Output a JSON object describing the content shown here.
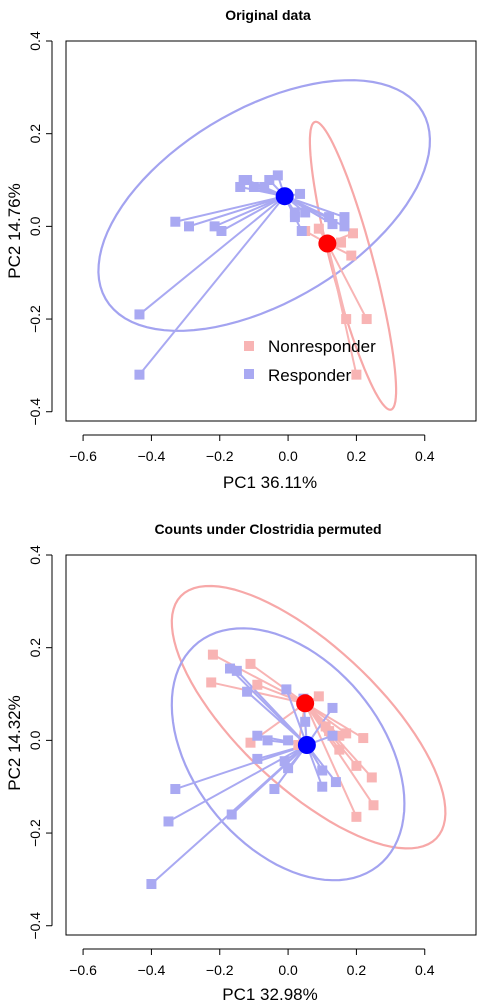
{
  "colors": {
    "nonresponder": "#f8b4b4",
    "responder": "#a9a9f2",
    "nonresponder_centroid": "#ff0000",
    "responder_centroid": "#0000ff",
    "nonresponder_ellipse": "#f7a8a8",
    "responder_ellipse": "#a3a3f0"
  },
  "chart_data": [
    {
      "type": "scatter",
      "title": "Original data",
      "xlabel": "PC1 36.11%",
      "ylabel": "PC2 14.76%",
      "xlim": [
        -0.65,
        0.55
      ],
      "ylim": [
        -0.42,
        0.4
      ],
      "xticks": [
        -0.6,
        -0.4,
        -0.2,
        0.0,
        0.2,
        0.4
      ],
      "xtick_labels": [
        "−0.6",
        "−0.4",
        "−0.2",
        "0.0",
        "0.2",
        "0.4"
      ],
      "yticks": [
        -0.4,
        -0.2,
        0.0,
        0.2,
        0.4
      ],
      "ytick_labels": [
        "−0.4",
        "−0.2",
        "0.0",
        "0.2",
        "0.4"
      ],
      "legend": {
        "position": "bottom-right",
        "items": [
          {
            "label": "Nonresponder",
            "color_key": "nonresponder"
          },
          {
            "label": "Responder",
            "color_key": "responder"
          }
        ]
      },
      "series": [
        {
          "name": "Nonresponder",
          "color_key": "nonresponder",
          "centroid": [
            0.115,
            -0.037
          ],
          "ellipse": {
            "cx": 0.19,
            "cy": -0.085,
            "rx": 0.33,
            "ry": 0.06,
            "angle_deg": -70
          },
          "points": [
            [
              0.2,
              -0.32
            ],
            [
              0.17,
              -0.2
            ],
            [
              0.23,
              -0.2
            ],
            [
              0.185,
              -0.063
            ],
            [
              0.19,
              -0.015
            ],
            [
              0.155,
              -0.035
            ],
            [
              0.09,
              -0.005
            ],
            [
              0.05,
              -0.01
            ]
          ]
        },
        {
          "name": "Responder",
          "color_key": "responder",
          "centroid": [
            -0.01,
            0.065
          ],
          "ellipse": {
            "cx": -0.07,
            "cy": 0.045,
            "rx": 0.51,
            "ry": 0.22,
            "angle_deg": 20
          },
          "points": [
            [
              -0.03,
              0.11
            ],
            [
              -0.055,
              0.1
            ],
            [
              -0.12,
              0.1
            ],
            [
              -0.13,
              0.1
            ],
            [
              -0.14,
              0.085
            ],
            [
              -0.1,
              0.085
            ],
            [
              -0.07,
              0.085
            ],
            [
              0.035,
              0.07
            ],
            [
              0.05,
              0.03
            ],
            [
              0.02,
              0.03
            ],
            [
              0.02,
              0.02
            ],
            [
              0.12,
              0.02
            ],
            [
              0.13,
              0.005
            ],
            [
              0.13,
              0.005
            ],
            [
              0.165,
              0.02
            ],
            [
              0.165,
              0.0
            ],
            [
              0.04,
              -0.01
            ],
            [
              -0.33,
              0.01
            ],
            [
              -0.29,
              0.0
            ],
            [
              -0.215,
              0.0
            ],
            [
              -0.195,
              -0.01
            ],
            [
              -0.435,
              -0.19
            ],
            [
              -0.435,
              -0.32
            ]
          ]
        }
      ]
    },
    {
      "type": "scatter",
      "title": "Counts under Clostridia permuted",
      "xlabel": "PC1 32.98%",
      "ylabel": "PC2 14.32%",
      "xlim": [
        -0.65,
        0.55
      ],
      "ylim": [
        -0.42,
        0.4
      ],
      "xticks": [
        -0.6,
        -0.4,
        -0.2,
        0.0,
        0.2,
        0.4
      ],
      "xtick_labels": [
        "−0.6",
        "−0.4",
        "−0.2",
        "0.0",
        "0.2",
        "0.4"
      ],
      "yticks": [
        -0.4,
        -0.2,
        0.0,
        0.2,
        0.4
      ],
      "ytick_labels": [
        "−0.4",
        "−0.2",
        "0.0",
        "0.2",
        "0.4"
      ],
      "series": [
        {
          "name": "Nonresponder",
          "color_key": "nonresponder",
          "centroid": [
            0.05,
            0.08
          ],
          "ellipse": {
            "cx": 0.06,
            "cy": 0.05,
            "rx": 0.46,
            "ry": 0.17,
            "angle_deg": -32
          },
          "points": [
            [
              -0.22,
              0.185
            ],
            [
              -0.11,
              0.165
            ],
            [
              -0.09,
              0.12
            ],
            [
              -0.225,
              0.125
            ],
            [
              0.09,
              0.095
            ],
            [
              0.11,
              0.03
            ],
            [
              0.12,
              0.02
            ],
            [
              0.15,
              0.01
            ],
            [
              0.17,
              0.015
            ],
            [
              0.22,
              0.005
            ],
            [
              0.15,
              -0.02
            ],
            [
              0.2,
              -0.055
            ],
            [
              0.245,
              -0.08
            ],
            [
              0.25,
              -0.14
            ],
            [
              0.2,
              -0.165
            ],
            [
              -0.11,
              -0.005
            ],
            [
              0.03,
              -0.01
            ]
          ]
        },
        {
          "name": "Responder",
          "color_key": "responder",
          "centroid": [
            0.055,
            -0.01
          ],
          "ellipse": {
            "cx": 0.0,
            "cy": -0.03,
            "rx": 0.37,
            "ry": 0.23,
            "angle_deg": -30
          },
          "points": [
            [
              -0.17,
              0.155
            ],
            [
              -0.15,
              0.15
            ],
            [
              -0.12,
              0.105
            ],
            [
              -0.005,
              0.11
            ],
            [
              0.045,
              0.09
            ],
            [
              0.13,
              0.07
            ],
            [
              0.05,
              0.04
            ],
            [
              0.13,
              0.01
            ],
            [
              0.0,
              0.0
            ],
            [
              -0.06,
              0.0
            ],
            [
              -0.09,
              0.01
            ],
            [
              -0.09,
              -0.04
            ],
            [
              -0.01,
              -0.045
            ],
            [
              0.0,
              -0.06
            ],
            [
              0.1,
              -0.065
            ],
            [
              0.14,
              -0.09
            ],
            [
              0.1,
              -0.1
            ],
            [
              -0.04,
              -0.105
            ],
            [
              -0.165,
              -0.16
            ],
            [
              -0.33,
              -0.105
            ],
            [
              -0.35,
              -0.175
            ],
            [
              -0.4,
              -0.31
            ]
          ]
        }
      ]
    }
  ]
}
